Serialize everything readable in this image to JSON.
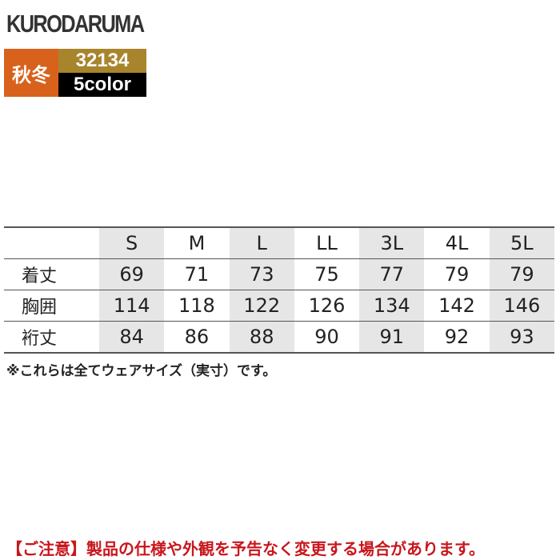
{
  "brand": "KURODARUMA",
  "season": "秋冬",
  "product_code": "32134",
  "color_count": "5color",
  "colors": {
    "season_bg": "#d8621c",
    "code_bg": "#a8852c",
    "warning": "#c8161d"
  },
  "table": {
    "headers": [
      "",
      "S",
      "M",
      "L",
      "LL",
      "3L",
      "4L",
      "5L"
    ],
    "rows": [
      {
        "label": "着丈",
        "values": [
          "69",
          "71",
          "73",
          "75",
          "77",
          "79",
          "79"
        ]
      },
      {
        "label": "胸囲",
        "values": [
          "114",
          "118",
          "122",
          "126",
          "134",
          "142",
          "146"
        ]
      },
      {
        "label": "裄丈",
        "values": [
          "84",
          "86",
          "88",
          "90",
          "91",
          "92",
          "93"
        ]
      }
    ]
  },
  "note": "※これらは全てウェアサイズ（実寸）です。",
  "warning": "【ご注意】製品の仕様や外観を予告なく変更する場合があります。"
}
